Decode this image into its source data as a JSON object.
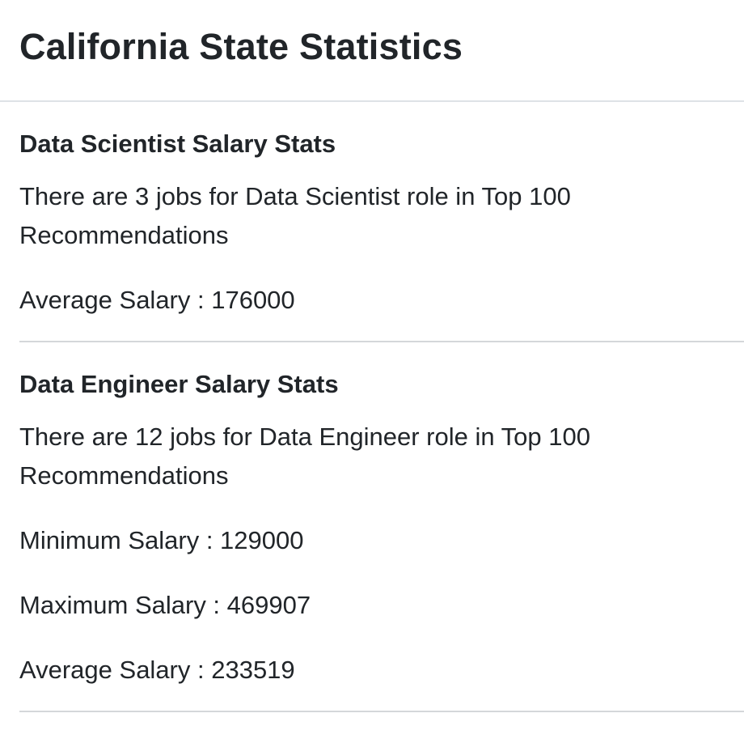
{
  "header": {
    "title": "California State Statistics"
  },
  "sections": [
    {
      "title": "Data Scientist Salary Stats",
      "description": "There are 3 jobs for Data Scientist role in Top 100 Recommendations",
      "stats": [
        "Average Salary : 176000"
      ]
    },
    {
      "title": "Data Engineer Salary Stats",
      "description": "There are 12 jobs for Data Engineer role in Top 100 Recommendations",
      "stats": [
        "Minimum Salary : 129000",
        "Maximum Salary : 469907",
        "Average Salary : 233519"
      ]
    }
  ]
}
